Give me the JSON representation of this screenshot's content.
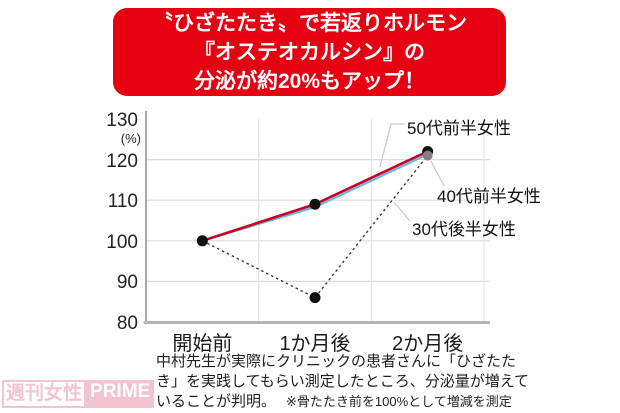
{
  "banner": {
    "line1": "〝ひざたたき〟で若返りホルモン",
    "line2": "『オステオカルシン』の",
    "line3": "分泌が約20%もアップ！",
    "bg_color": "#e50012",
    "text_color": "#ffffff"
  },
  "chart_data": {
    "type": "line",
    "categories": [
      "開始前",
      "1か月後",
      "2か月後"
    ],
    "y_ticks": [
      80,
      90,
      100,
      110,
      120,
      130
    ],
    "ylim": [
      80,
      130
    ],
    "y_unit_label": "(%)",
    "grid": true,
    "legend_position": "right-annotations",
    "series": [
      {
        "name": "50代前半女性",
        "color": "#c90023",
        "style": "solid",
        "values": [
          100,
          109,
          122
        ]
      },
      {
        "name": "40代前半女性",
        "color": "#63b8dd",
        "style": "solid",
        "values": [
          100,
          108.3,
          121.3
        ]
      },
      {
        "name": "30代後半女性",
        "color": "#3a3a3a",
        "style": "dotted",
        "values": [
          100,
          86,
          121
        ]
      }
    ],
    "markers": [
      {
        "category_index": 0,
        "value": 100,
        "color": "#111111"
      },
      {
        "category_index": 1,
        "value": 109,
        "color": "#111111"
      },
      {
        "category_index": 1,
        "value": 86,
        "color": "#111111"
      },
      {
        "category_index": 2,
        "value": 122,
        "color": "#111111"
      },
      {
        "category_index": 2,
        "value": 121,
        "color": "#808080"
      }
    ]
  },
  "caption": {
    "line1": "中村先生が実際にクリニックの患者さんに「ひざたた",
    "line2": "き」を実践してもらい測定したところ、分泌量が増えて",
    "line3": "いることが判明。",
    "note": "※骨たたき前を100%として増減を測定"
  },
  "watermark": {
    "part1": "週刊女性",
    "part2": "PRIME",
    "color": "#d94b72"
  }
}
